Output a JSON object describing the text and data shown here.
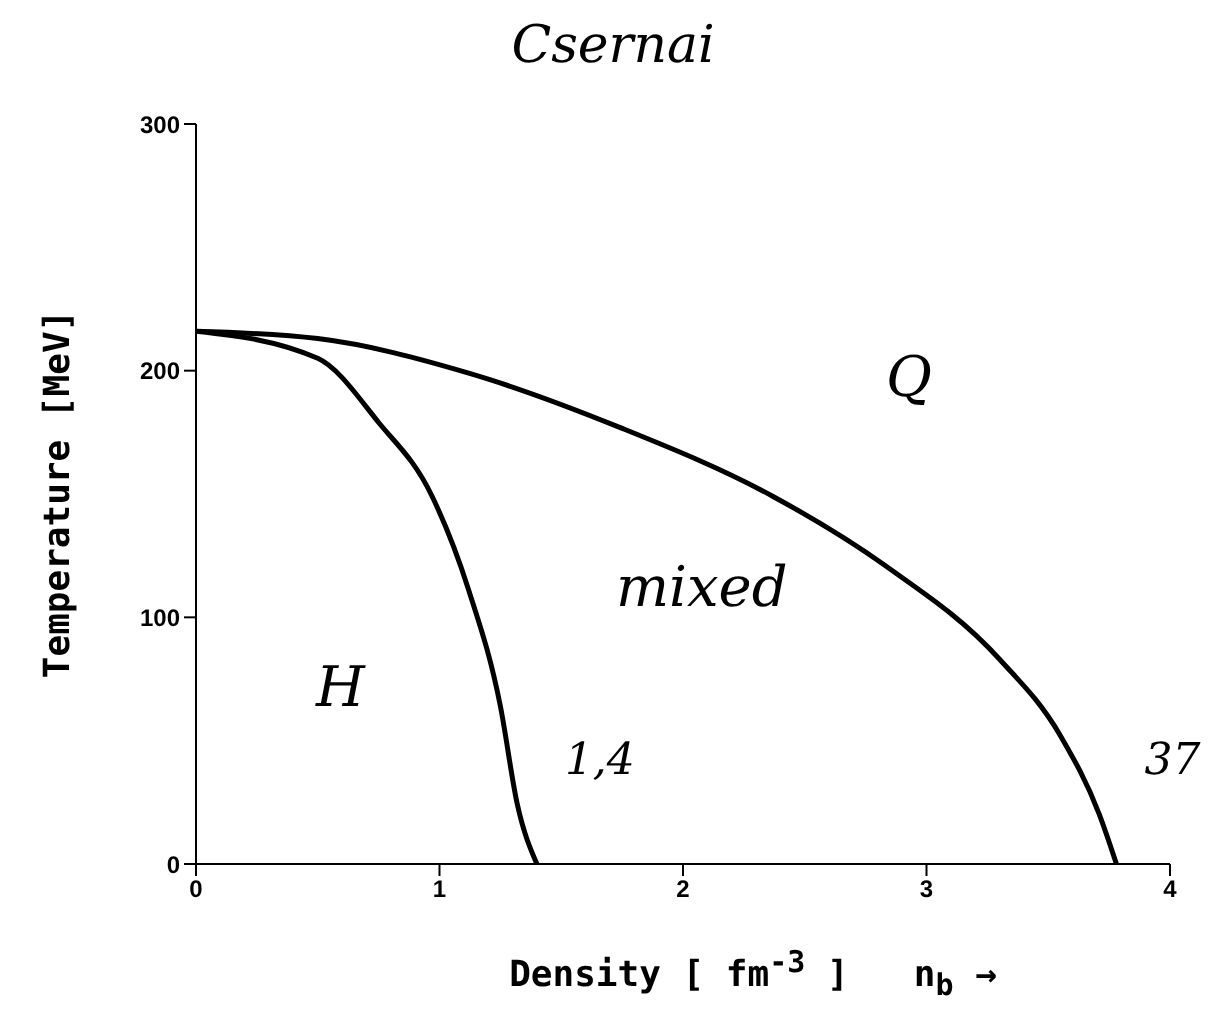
{
  "chart_data": {
    "type": "line",
    "title": "Csernai",
    "xlabel": "Density [ fm$^{-3}$ ]   n$_{b}$ →",
    "ylabel": "Temperature  [MeV]",
    "xlim": [
      0,
      4
    ],
    "xticks": [
      0,
      1,
      2,
      3,
      4
    ],
    "ylim": [
      0,
      300
    ],
    "yticks": [
      0,
      100,
      200,
      300
    ],
    "series": [
      {
        "color": "#000000",
        "x": [
          0,
          0.5,
          0.75,
          0.97,
          1.12,
          1.25,
          1.32,
          1.4
        ],
        "values": [
          216,
          205,
          179,
          149,
          111,
          64,
          24,
          0
        ]
      },
      {
        "color": "#000000",
        "x": [
          0,
          0.5,
          1.12,
          1.74,
          2.37,
          2.83,
          3.3,
          3.55,
          3.71,
          3.78
        ],
        "values": [
          216,
          213,
          199,
          177,
          149,
          121,
          83,
          52,
          20,
          0
        ]
      }
    ],
    "annotations": [
      "H",
      "mixed",
      "Q",
      {
        "text": "1,4",
        "x": 1.4,
        "y": 0
      },
      {
        "text": "37",
        "x": 3.78,
        "y": 0
      }
    ],
    "marker": "none",
    "line_style": "solid"
  }
}
